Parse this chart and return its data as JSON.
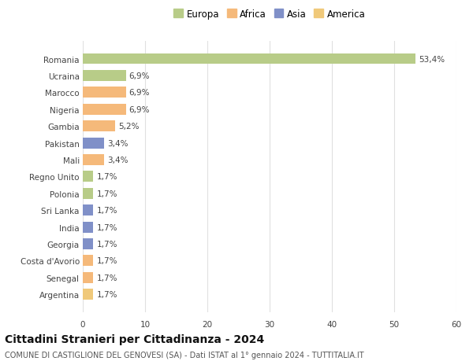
{
  "categories": [
    "Romania",
    "Ucraina",
    "Marocco",
    "Nigeria",
    "Gambia",
    "Pakistan",
    "Mali",
    "Regno Unito",
    "Polonia",
    "Sri Lanka",
    "India",
    "Georgia",
    "Costa d'Avorio",
    "Senegal",
    "Argentina"
  ],
  "values": [
    53.4,
    6.9,
    6.9,
    6.9,
    5.2,
    3.4,
    3.4,
    1.7,
    1.7,
    1.7,
    1.7,
    1.7,
    1.7,
    1.7,
    1.7
  ],
  "labels": [
    "53,4%",
    "6,9%",
    "6,9%",
    "6,9%",
    "5,2%",
    "3,4%",
    "3,4%",
    "1,7%",
    "1,7%",
    "1,7%",
    "1,7%",
    "1,7%",
    "1,7%",
    "1,7%",
    "1,7%"
  ],
  "colors": [
    "#b8cc88",
    "#b8cc88",
    "#f5b97a",
    "#f5b97a",
    "#f5b97a",
    "#8090c8",
    "#f5b97a",
    "#b8cc88",
    "#b8cc88",
    "#8090c8",
    "#8090c8",
    "#8090c8",
    "#f5b97a",
    "#f5b97a",
    "#f0c97a"
  ],
  "legend_labels": [
    "Europa",
    "Africa",
    "Asia",
    "America"
  ],
  "legend_colors": [
    "#b8cc88",
    "#f5b97a",
    "#8090c8",
    "#f0c97a"
  ],
  "title": "Cittadini Stranieri per Cittadinanza - 2024",
  "subtitle": "COMUNE DI CASTIGLIONE DEL GENOVESI (SA) - Dati ISTAT al 1° gennaio 2024 - TUTTITALIA.IT",
  "xlim": [
    0,
    60
  ],
  "xticks": [
    0,
    10,
    20,
    30,
    40,
    50,
    60
  ],
  "bg_color": "#ffffff",
  "grid_color": "#e0e0e0",
  "bar_height": 0.65,
  "label_fontsize": 7.5,
  "tick_fontsize": 7.5,
  "title_fontsize": 10,
  "subtitle_fontsize": 7
}
